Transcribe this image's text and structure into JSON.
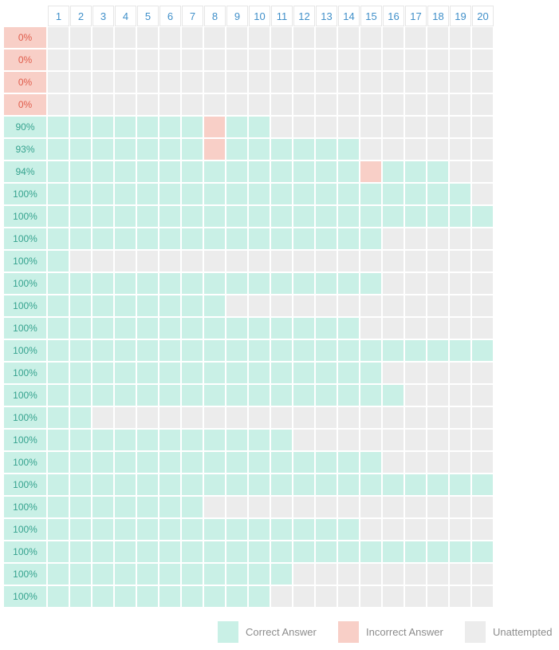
{
  "columns": [
    "1",
    "2",
    "3",
    "4",
    "5",
    "6",
    "7",
    "8",
    "9",
    "10",
    "11",
    "12",
    "13",
    "14",
    "15",
    "16",
    "17",
    "18",
    "19",
    "20"
  ],
  "colors": {
    "correct": "#c9f0e6",
    "incorrect": "#f8cfc7",
    "unattempted": "#ececec",
    "score_text_correct": "#36a38f",
    "score_text_incorrect": "#e05c4b",
    "header_text": "#3f8fc9",
    "legend_text": "#8c8c8c"
  },
  "rows": [
    {
      "score": "0%",
      "cells": "UUUUUUUUUUUUUUUUUUUU"
    },
    {
      "score": "0%",
      "cells": "UUUUUUUUUUUUUUUUUUUU"
    },
    {
      "score": "0%",
      "cells": "UUUUUUUUUUUUUUUUUUUU"
    },
    {
      "score": "0%",
      "cells": "UUUUUUUUUUUUUUUUUUUU"
    },
    {
      "score": "90%",
      "cells": "CCCCCCCICCUUUUUUUUUU"
    },
    {
      "score": "93%",
      "cells": "CCCCCCCICCCCCCUUUUUU"
    },
    {
      "score": "94%",
      "cells": "CCCCCCCCCCCCCCICCCUU"
    },
    {
      "score": "100%",
      "cells": "CCCCCCCCCCCCCCCCCCCU"
    },
    {
      "score": "100%",
      "cells": "CCCCCCCCCCCCCCCCCCCC"
    },
    {
      "score": "100%",
      "cells": "CCCCCCCCCCCCCCCUUUUU"
    },
    {
      "score": "100%",
      "cells": "CUUUUUUUUUUUUUUUUUUU"
    },
    {
      "score": "100%",
      "cells": "CCCCCCCCCCCCCCCUUUUU"
    },
    {
      "score": "100%",
      "cells": "CCCCCCCCUUUUUUUUUUUU"
    },
    {
      "score": "100%",
      "cells": "CCCCCCCCCCCCCCUUUUUU"
    },
    {
      "score": "100%",
      "cells": "CCCCCCCCCCCCCCCCCCCC"
    },
    {
      "score": "100%",
      "cells": "CCCCCCCCCCCCCCCUUUUU"
    },
    {
      "score": "100%",
      "cells": "CCCCCCCCCCCCCCCCUUUU"
    },
    {
      "score": "100%",
      "cells": "CCUUUUUUUUUUUUUUUUUU"
    },
    {
      "score": "100%",
      "cells": "CCCCCCCCCCCUUUUUUUUU"
    },
    {
      "score": "100%",
      "cells": "CCCCCCCCCCCCCCCUUUUU"
    },
    {
      "score": "100%",
      "cells": "CCCCCCCCCCCCCCCCCCCC"
    },
    {
      "score": "100%",
      "cells": "CCCCCCCUUUUUUUUUUUUU"
    },
    {
      "score": "100%",
      "cells": "CCCCCCCCCCCCCCUUUUUU"
    },
    {
      "score": "100%",
      "cells": "CCCCCCCCCCCCCCCCCCCC"
    },
    {
      "score": "100%",
      "cells": "CCCCCCCCCCCUUUUUUUUU"
    },
    {
      "score": "100%",
      "cells": "CCCCCCCCCCUUUUUUUUUU"
    }
  ],
  "legend": {
    "correct_label": "Correct Answer",
    "incorrect_label": "Incorrect Answer",
    "unattempted_label": "Unattempted"
  }
}
